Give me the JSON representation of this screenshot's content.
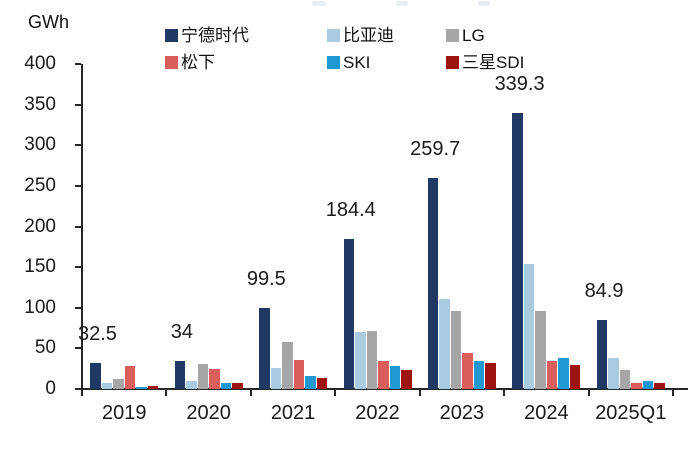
{
  "page": {
    "background": "#ffffff"
  },
  "chart_data": {
    "type": "bar",
    "title": "",
    "unit_label": "GWh",
    "xlabel": "",
    "ylabel": "GWh",
    "categories": [
      "2019",
      "2020",
      "2021",
      "2022",
      "2023",
      "2024",
      "2025Q1"
    ],
    "series": [
      {
        "name": "宁德时代",
        "color": "#1F3864",
        "values": [
          32.5,
          34,
          99.5,
          184.4,
          259.7,
          339.3,
          84.9
        ],
        "data_labels": [
          "32.5",
          "34",
          "99.5",
          "184.4",
          "259.7",
          "339.3",
          "84.9"
        ]
      },
      {
        "name": "比亚迪",
        "color": "#A9CBE2",
        "values": [
          7,
          10,
          26,
          70,
          111,
          154,
          38
        ]
      },
      {
        "name": "LG",
        "color": "#A6A6A6",
        "values": [
          12,
          31,
          58,
          71,
          96,
          96,
          24
        ]
      },
      {
        "name": "松下",
        "color": "#DA5E5B",
        "values": [
          28,
          25,
          36,
          34,
          44,
          35,
          7
        ]
      },
      {
        "name": "SKI",
        "color": "#2098D2",
        "values": [
          2,
          7,
          16,
          28,
          34,
          38,
          10
        ]
      },
      {
        "name": "三星SDI",
        "color": "#9E1411",
        "values": [
          4,
          8,
          13,
          23,
          32,
          29,
          7
        ]
      }
    ],
    "ylim": [
      0,
      400
    ],
    "yticks": [
      0,
      50,
      100,
      150,
      200,
      250,
      300,
      350,
      400
    ],
    "grid": false,
    "legend_position": "top",
    "legend_rows": [
      [
        "宁德时代",
        "比亚迪",
        "LG"
      ],
      [
        "松下",
        "SKI",
        "三星SDI"
      ]
    ],
    "axis_color": "#262626",
    "text_color": "#1a1a1a"
  }
}
